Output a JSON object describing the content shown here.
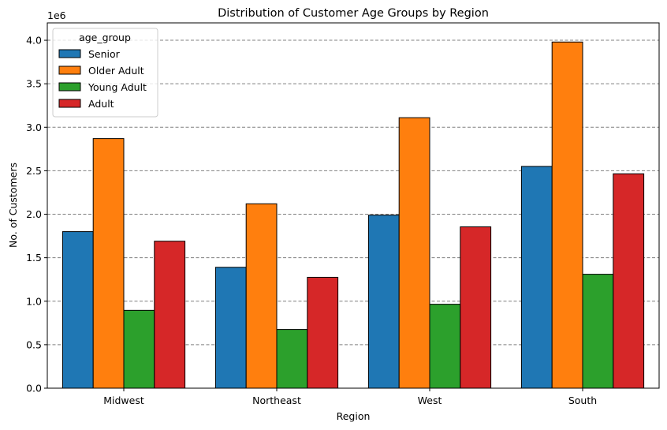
{
  "chart_data": {
    "type": "bar",
    "title": "Distribution of Customer Age Groups by Region",
    "xlabel": "Region",
    "ylabel": "No. of Customers",
    "offset_label": "1e6",
    "categories": [
      "Midwest",
      "Northeast",
      "West",
      "South"
    ],
    "series": [
      {
        "name": "Senior",
        "color": "#1f77b4",
        "values": [
          1800000,
          1390000,
          1990000,
          2550000
        ]
      },
      {
        "name": "Older Adult",
        "color": "#ff7f0e",
        "values": [
          2870000,
          2120000,
          3110000,
          3980000
        ]
      },
      {
        "name": "Young Adult",
        "color": "#2ca02c",
        "values": [
          895000,
          675000,
          965000,
          1310000
        ]
      },
      {
        "name": "Adult",
        "color": "#d62728",
        "values": [
          1690000,
          1275000,
          1855000,
          2465000
        ]
      }
    ],
    "ylim": [
      0,
      4200000
    ],
    "yticks": [
      0,
      500000,
      1000000,
      1500000,
      2000000,
      2500000,
      3000000,
      3500000,
      4000000
    ],
    "ytick_labels": [
      "0.0",
      "0.5",
      "1.0",
      "1.5",
      "2.0",
      "2.5",
      "3.0",
      "3.5",
      "4.0"
    ],
    "grid": "y, dashed",
    "legend": {
      "title": "age_group",
      "placement": "top-left"
    }
  }
}
